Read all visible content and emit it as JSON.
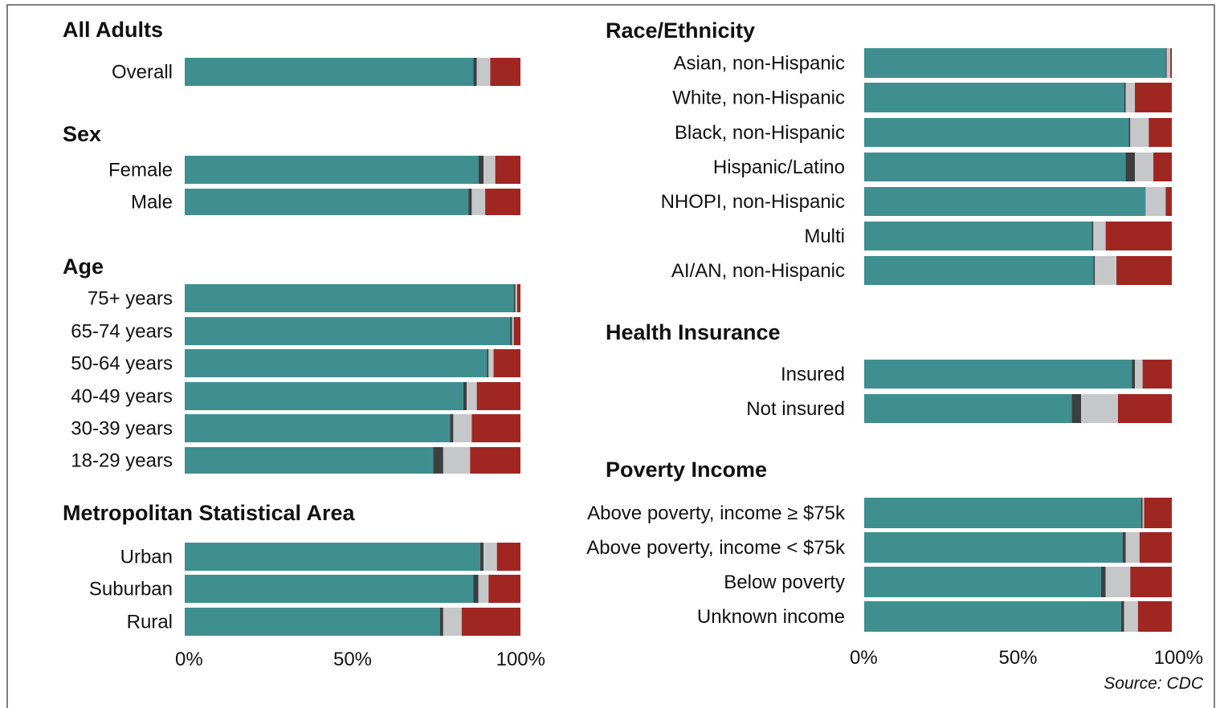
{
  "colors": {
    "seg1": "#3f8f90",
    "seg2": "#3b3f40",
    "seg3": "#c6c7c9",
    "seg4": "#a02622",
    "frame": "#555555"
  },
  "source": "Source: CDC",
  "chart_data": [
    {
      "type": "stacked-bar-horizontal",
      "xlim": [
        0,
        100
      ],
      "x_ticks": [
        "0%",
        "50%",
        "100%"
      ],
      "groups": [
        {
          "title": "All Adults",
          "categories": [
            "Overall"
          ],
          "segments": [
            [
              86,
              1,
              4,
              9
            ]
          ]
        },
        {
          "title": "Sex",
          "categories": [
            "Female",
            "Male"
          ],
          "segments": [
            [
              87.5,
              1.5,
              3.5,
              7.5
            ],
            [
              84.5,
              1,
              4,
              10.5
            ]
          ]
        },
        {
          "title": "Age",
          "categories": [
            "75+ years",
            "65-74 years",
            "50-64 years",
            "40-49 years",
            "30-39 years",
            "18-29 years"
          ],
          "segments": [
            [
              98,
              0.5,
              0.5,
              1
            ],
            [
              97,
              0.5,
              0.5,
              2
            ],
            [
              90,
              0.5,
              1.5,
              8
            ],
            [
              83,
              1,
              3,
              13
            ],
            [
              79,
              1,
              5.5,
              14.5
            ],
            [
              74,
              3,
              8,
              15
            ]
          ]
        },
        {
          "title": "Metropolitan Statistical Area",
          "categories": [
            "Urban",
            "Suburban",
            "Rural"
          ],
          "segments": [
            [
              88,
              1,
              4,
              7
            ],
            [
              86,
              1.5,
              3,
              9.5
            ],
            [
              76,
              1,
              5.5,
              17.5
            ]
          ]
        }
      ]
    },
    {
      "type": "stacked-bar-horizontal",
      "xlim": [
        0,
        100
      ],
      "x_ticks": [
        "0%",
        "50%",
        "100%"
      ],
      "groups": [
        {
          "title": "Race/Ethnicity",
          "categories": [
            "Asian, non-Hispanic",
            "White, non-Hispanic",
            "Black, non-Hispanic",
            "Hispanic/Latino",
            "NHOPI, non-Hispanic",
            "Multi",
            "AI/AN, non-Hispanic"
          ],
          "segments": [
            [
              98,
              0.3,
              1.2,
              0.5
            ],
            [
              84.5,
              0.5,
              3,
              12
            ],
            [
              86,
              0.5,
              6,
              7.5
            ],
            [
              85,
              3,
              6,
              6
            ],
            [
              91.5,
              0,
              6.5,
              2
            ],
            [
              74,
              0.5,
              4,
              21.5
            ],
            [
              74.5,
              0.5,
              7,
              18
            ]
          ]
        },
        {
          "title": "Health Insurance",
          "categories": [
            "Insured",
            "Not insured"
          ],
          "segments": [
            [
              87,
              1,
              2.5,
              9.5
            ],
            [
              67.5,
              3,
              12,
              17.5
            ]
          ]
        },
        {
          "title": "Poverty Income",
          "categories": [
            "Above poverty, income ≥ $75k",
            "Above poverty, income < $75k",
            "Below poverty",
            "Unknown income"
          ],
          "segments": [
            [
              90,
              0.5,
              0.5,
              9
            ],
            [
              84,
              1,
              4.5,
              10.5
            ],
            [
              77,
              1.5,
              8,
              13.5
            ],
            [
              83.5,
              1,
              4.5,
              11
            ]
          ]
        }
      ]
    }
  ]
}
